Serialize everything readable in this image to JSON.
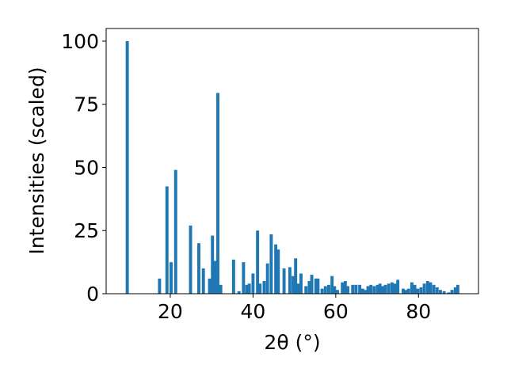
{
  "chart_data": {
    "type": "bar",
    "xlabel": "2θ (°)",
    "ylabel": "Intensities (scaled)",
    "xlim": [
      4.5,
      94.5
    ],
    "ylim": [
      0,
      105
    ],
    "xticks": [
      20,
      40,
      60,
      80
    ],
    "yticks": [
      0,
      25,
      50,
      75,
      100
    ],
    "grid": false,
    "bar_color": "#1f77b4",
    "bar_width": 0.75,
    "x": [
      9.6,
      17.4,
      19.2,
      20.2,
      21.3,
      24.9,
      26.9,
      28.0,
      29.5,
      30.2,
      30.8,
      31.5,
      32.2,
      35.3,
      36.6,
      37.7,
      38.5,
      39.1,
      40.0,
      41.1,
      41.7,
      42.7,
      43.5,
      44.4,
      45.5,
      46.1,
      47.5,
      48.9,
      49.7,
      50.3,
      50.9,
      51.6,
      52.8,
      53.6,
      54.2,
      55.2,
      55.7,
      56.7,
      57.5,
      58.3,
      59.1,
      59.7,
      60.4,
      61.6,
      62.3,
      62.9,
      64.1,
      64.9,
      65.8,
      66.5,
      67.1,
      67.8,
      68.5,
      69.3,
      70.1,
      70.7,
      71.4,
      72.0,
      72.8,
      73.6,
      74.3,
      75.0,
      76.3,
      76.9,
      77.6,
      78.4,
      79.1,
      79.8,
      80.6,
      81.4,
      82.2,
      82.9,
      83.7,
      84.5,
      85.3,
      86.2,
      87.3,
      88.1,
      88.9,
      89.5
    ],
    "values": [
      100,
      6,
      42.5,
      12.5,
      49,
      27,
      20,
      10,
      6,
      23,
      13,
      79.5,
      3.5,
      13.5,
      1,
      12.5,
      3.5,
      4,
      8,
      25,
      4,
      5,
      12,
      23.5,
      19.5,
      17.5,
      10,
      10.5,
      7,
      14,
      4,
      8,
      3,
      5,
      7.5,
      6,
      6,
      2,
      3,
      3.5,
      7,
      3,
      1.5,
      4.5,
      5,
      3,
      3.5,
      3.5,
      3.5,
      2,
      1.5,
      3,
      3.5,
      3,
      3.5,
      4,
      3,
      3.5,
      4,
      4.5,
      4,
      5.5,
      2,
      1.5,
      2,
      4.5,
      3.5,
      2,
      2.5,
      4,
      5,
      4.5,
      3.5,
      2.5,
      1.5,
      1,
      0.5,
      1.5,
      2.5,
      3.5
    ]
  }
}
